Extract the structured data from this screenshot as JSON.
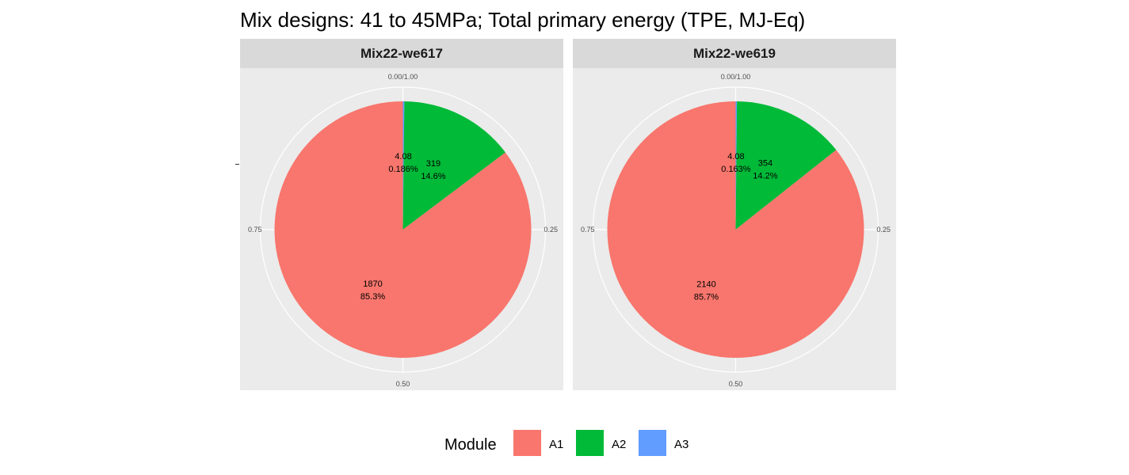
{
  "chart_data": {
    "type": "pie",
    "title": "Mix designs: 41 to 45MPa; Total primary energy (TPE, MJ-Eq)",
    "theta_ticks": [
      "0.00/1.00",
      "0.25",
      "0.50",
      "0.75"
    ],
    "legend": {
      "title": "Module",
      "position": "bottom",
      "entries": [
        "A1",
        "A2",
        "A3"
      ]
    },
    "series_colors": {
      "A1": "#F8766D",
      "A2": "#00BA38",
      "A3": "#619CFF"
    },
    "panels": [
      {
        "name": "Mix22-we617",
        "slices": [
          {
            "category": "A3",
            "value": 4.08,
            "value_label": "4.08",
            "percent": 0.186,
            "percent_label": "0.186%"
          },
          {
            "category": "A2",
            "value": 319,
            "value_label": "319",
            "percent": 14.6,
            "percent_label": "14.6%"
          },
          {
            "category": "A1",
            "value": 1870,
            "value_label": "1870",
            "percent": 85.3,
            "percent_label": "85.3%"
          }
        ]
      },
      {
        "name": "Mix22-we619",
        "slices": [
          {
            "category": "A3",
            "value": 4.08,
            "value_label": "4.08",
            "percent": 0.163,
            "percent_label": "0.163%"
          },
          {
            "category": "A2",
            "value": 354,
            "value_label": "354",
            "percent": 14.2,
            "percent_label": "14.2%"
          },
          {
            "category": "A1",
            "value": 2140,
            "value_label": "2140",
            "percent": 85.7,
            "percent_label": "85.7%"
          }
        ]
      }
    ]
  }
}
